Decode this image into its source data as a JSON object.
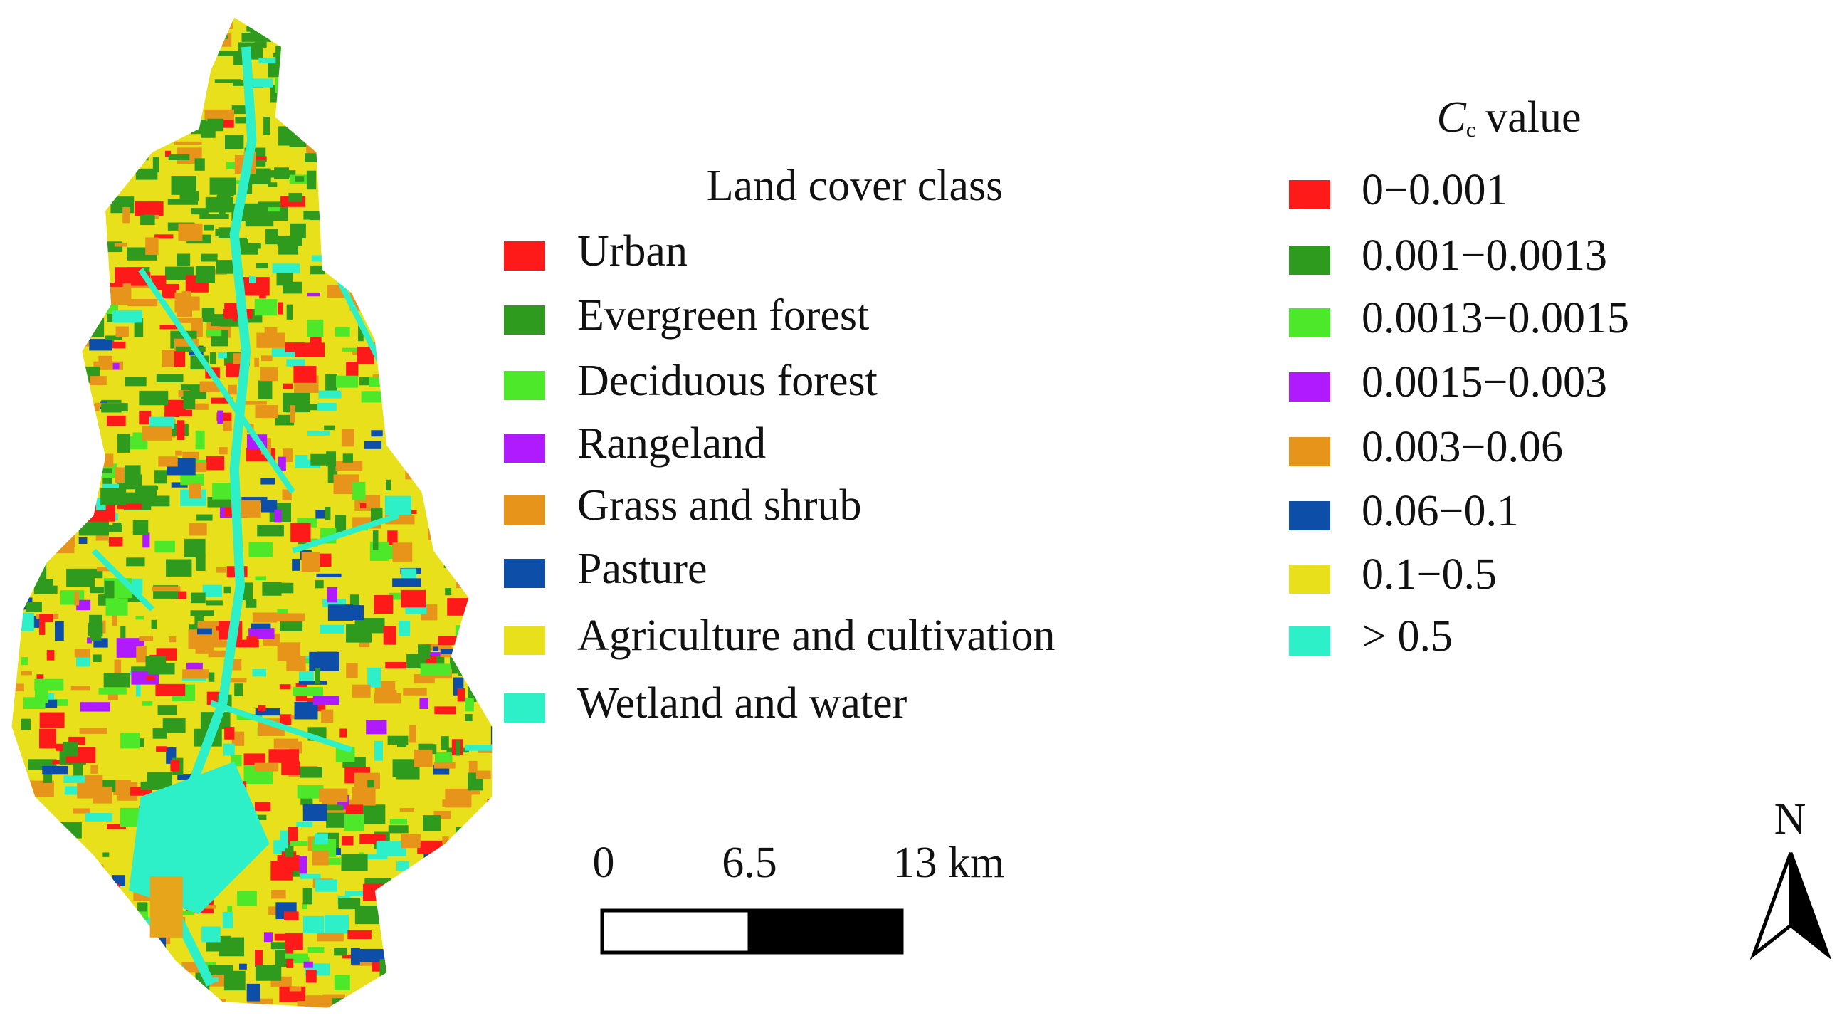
{
  "land_cover_legend": {
    "title": "Land cover class",
    "items": [
      {
        "label": "Urban",
        "color": "#ff1a1a"
      },
      {
        "label": "Evergreen forest",
        "color": "#2e9a1e"
      },
      {
        "label": "Deciduous forest",
        "color": "#4ee82a"
      },
      {
        "label": "Rangeland",
        "color": "#b01aff"
      },
      {
        "label": "Grass and shrub",
        "color": "#e6951a"
      },
      {
        "label": "Pasture",
        "color": "#0d4fa8"
      },
      {
        "label": "Agriculture and cultivation",
        "color": "#e8e01a"
      },
      {
        "label": "Wetland and water",
        "color": "#2ef0c8"
      }
    ]
  },
  "cc_legend": {
    "title": {
      "symbol": "C",
      "subscript": "c",
      "text": "value"
    },
    "items": [
      {
        "label": "0−0.001",
        "color": "#ff1a1a"
      },
      {
        "label": "0.001−0.0013",
        "color": "#2e9a1e"
      },
      {
        "label": "0.0013−0.0015",
        "color": "#4ee82a"
      },
      {
        "label": "0.0015−0.003",
        "color": "#b01aff"
      },
      {
        "label": "0.003−0.06",
        "color": "#e6951a"
      },
      {
        "label": "0.06−0.1",
        "color": "#0d4fa8"
      },
      {
        "label": "0.1−0.5",
        "color": "#e8e01a"
      },
      {
        "label": "> 0.5",
        "color": "#2ef0c8"
      }
    ]
  },
  "scale_bar": {
    "labels": [
      "0",
      "6.5",
      "13 km"
    ]
  },
  "north_arrow": {
    "label": "N"
  }
}
